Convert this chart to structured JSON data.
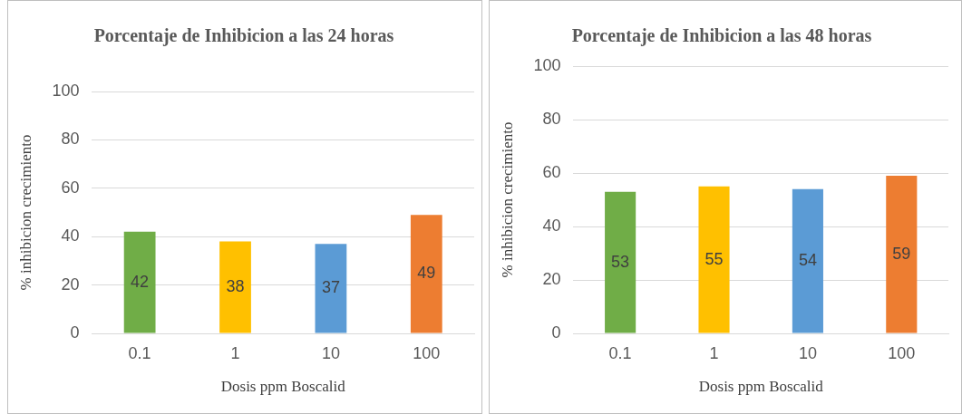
{
  "chart_data": [
    {
      "type": "bar",
      "title": "Porcentaje de Inhibicion a las 24 horas",
      "xlabel": "Dosis ppm Boscalid",
      "ylabel": "% inhibicion crecimiento",
      "categories": [
        "0.1",
        "1",
        "10",
        "100"
      ],
      "values": [
        42,
        38,
        37,
        49
      ],
      "colors": [
        "#70ad47",
        "#ffc000",
        "#5b9bd5",
        "#ed7d31"
      ],
      "ylim": [
        0,
        100
      ],
      "yticks": [
        0,
        20,
        40,
        60,
        80,
        100
      ],
      "grid": "y",
      "data_labels": true,
      "legend": false
    },
    {
      "type": "bar",
      "title": "Porcentaje de Inhibicion a las 48 horas",
      "xlabel": "Dosis ppm Boscalid",
      "ylabel": "% inhibicion crecimiento",
      "categories": [
        "0.1",
        "1",
        "10",
        "100"
      ],
      "values": [
        53,
        55,
        54,
        59
      ],
      "colors": [
        "#70ad47",
        "#ffc000",
        "#5b9bd5",
        "#ed7d31"
      ],
      "ylim": [
        0,
        100
      ],
      "yticks": [
        0,
        20,
        40,
        60,
        80,
        100
      ],
      "grid": "y",
      "data_labels": true,
      "legend": false
    }
  ]
}
